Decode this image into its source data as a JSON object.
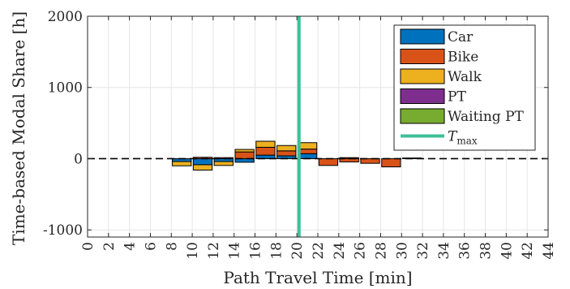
{
  "chart_data": {
    "type": "bar",
    "stacked": true,
    "xlabel": "Path Travel Time [min]",
    "ylabel": "Time-based Modal Share [h]",
    "ylim": [
      -1100,
      2000
    ],
    "xlim": [
      0,
      44
    ],
    "yticks": [
      -1000,
      0,
      1000,
      2000
    ],
    "yticklabels": [
      "-1000",
      "0",
      "1000",
      "2000"
    ],
    "xticks": [
      0,
      2,
      4,
      6,
      8,
      10,
      12,
      14,
      16,
      18,
      20,
      22,
      24,
      26,
      28,
      30,
      32,
      34,
      36,
      38,
      40,
      42,
      44
    ],
    "xticklabels": [
      "0",
      "2",
      "4",
      "6",
      "8",
      "10",
      "12",
      "14",
      "16",
      "18",
      "20",
      "22",
      "24",
      "26",
      "28",
      "30",
      "32",
      "34",
      "36",
      "38",
      "40",
      "42",
      "44"
    ],
    "grid": true,
    "legend_position": "top-right",
    "bar_x": [
      9,
      11,
      13,
      15,
      17,
      19,
      21,
      23,
      25,
      27,
      29,
      31
    ],
    "positive_series": [
      {
        "name": "Car",
        "color": "#0072BD",
        "values": [
          0,
          0,
          0,
          0,
          50,
          40,
          70,
          0,
          0,
          0,
          0,
          0
        ]
      },
      {
        "name": "Bike",
        "color": "#D95319",
        "values": [
          0,
          20,
          15,
          95,
          110,
          70,
          65,
          0,
          15,
          0,
          0,
          10
        ]
      },
      {
        "name": "Walk",
        "color": "#EDB120",
        "values": [
          0,
          0,
          0,
          35,
          85,
          75,
          90,
          0,
          0,
          0,
          0,
          0
        ]
      }
    ],
    "negative_series": [
      {
        "name": "Car",
        "color": "#0072BD",
        "values": [
          -40,
          -85,
          -40,
          -50,
          0,
          0,
          0,
          0,
          0,
          0,
          0,
          0
        ]
      },
      {
        "name": "Bike",
        "color": "#D95319",
        "values": [
          0,
          0,
          0,
          0,
          0,
          0,
          0,
          -95,
          -45,
          -65,
          -115,
          0
        ]
      },
      {
        "name": "Walk",
        "color": "#EDB120",
        "values": [
          -60,
          -75,
          -55,
          0,
          0,
          0,
          0,
          0,
          0,
          0,
          0,
          0
        ]
      }
    ],
    "zero_line_style": "dashed",
    "vline": {
      "name": "T_max",
      "x": 20.2,
      "color": "#3FBF98"
    },
    "legend": [
      {
        "label": "Car",
        "color": "#0072BD",
        "kind": "box"
      },
      {
        "label": "Bike",
        "color": "#D95319",
        "kind": "box"
      },
      {
        "label": "Walk",
        "color": "#EDB120",
        "kind": "box"
      },
      {
        "label": "PT",
        "color": "#7E2F8E",
        "kind": "box"
      },
      {
        "label": "Waiting PT",
        "color": "#77AC30",
        "kind": "box"
      },
      {
        "label": "T",
        "sub": "max",
        "color": "#3FBF98",
        "kind": "line"
      }
    ]
  }
}
